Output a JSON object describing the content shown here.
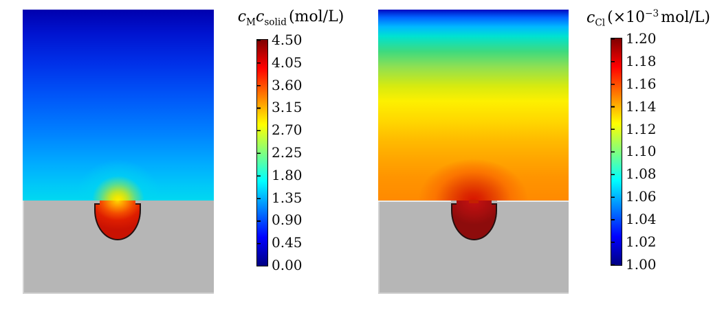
{
  "figure": {
    "background": "#ffffff",
    "metal_color": "#b6b6b6",
    "pit_outline_color": "#241010"
  },
  "chart_data": [
    {
      "type": "heatmap",
      "panel": "left",
      "title": "c_M c_solid (mol/L)",
      "title_parts": {
        "s1": "c",
        "s1_sub": "M",
        "s2": "c",
        "s2_sub": "solid",
        "unit": "(mol/L)"
      },
      "colorbar": {
        "position": "right",
        "min": 0.0,
        "max": 4.5,
        "step": 0.45,
        "colormap": "jet",
        "colormap_stops": [
          "#000082",
          "#0000ff",
          "#00ffff",
          "#ffff00",
          "#ff0000",
          "#7f0000"
        ],
        "ticks": [
          "4.50",
          "4.05",
          "3.60",
          "3.15",
          "2.70",
          "2.25",
          "1.80",
          "1.35",
          "0.90",
          "0.45",
          "0.00"
        ]
      },
      "field_values": {
        "electrolyte_top": 0.0,
        "near_surface": 1.5,
        "pit_mouth_glow": 2.9,
        "inside_pit": 4.5
      },
      "regions": {
        "electrolyte": "vertical gradient dark blue (top) to cyan (metal surface)",
        "metal": "uniform gray slab, lower third",
        "pit": "dome-shaped pit in metal, red with yellow-orange hot spot at mouth"
      }
    },
    {
      "type": "heatmap",
      "panel": "right",
      "title": "c_Cl (×10−3 mol/L)",
      "title_parts": {
        "s1": "c",
        "s1_sub": "Cl",
        "open": "(×10",
        "exp": "−3",
        "close": "mol/L)"
      },
      "colorbar": {
        "position": "right",
        "min": 1.0,
        "max": 1.2,
        "step": 0.02,
        "colormap": "jet",
        "colormap_stops": [
          "#000082",
          "#0000ff",
          "#00ffff",
          "#ffff00",
          "#ff0000",
          "#7f0000"
        ],
        "ticks": [
          "1.20",
          "1.18",
          "1.16",
          "1.14",
          "1.12",
          "1.10",
          "1.08",
          "1.06",
          "1.04",
          "1.02",
          "1.00"
        ]
      },
      "field_values": {
        "electrolyte_top": 1.0,
        "near_surface": 1.14,
        "pit_mouth_glow": 1.17,
        "inside_pit": 1.2
      },
      "regions": {
        "electrolyte": "vertical gradient dark blue (top) through cyan, green, yellow to orange (metal surface) with red glow above pit mouth",
        "metal": "uniform gray slab, lower third",
        "pit": "dome-shaped pit in metal, uniform dark maroon"
      }
    }
  ]
}
